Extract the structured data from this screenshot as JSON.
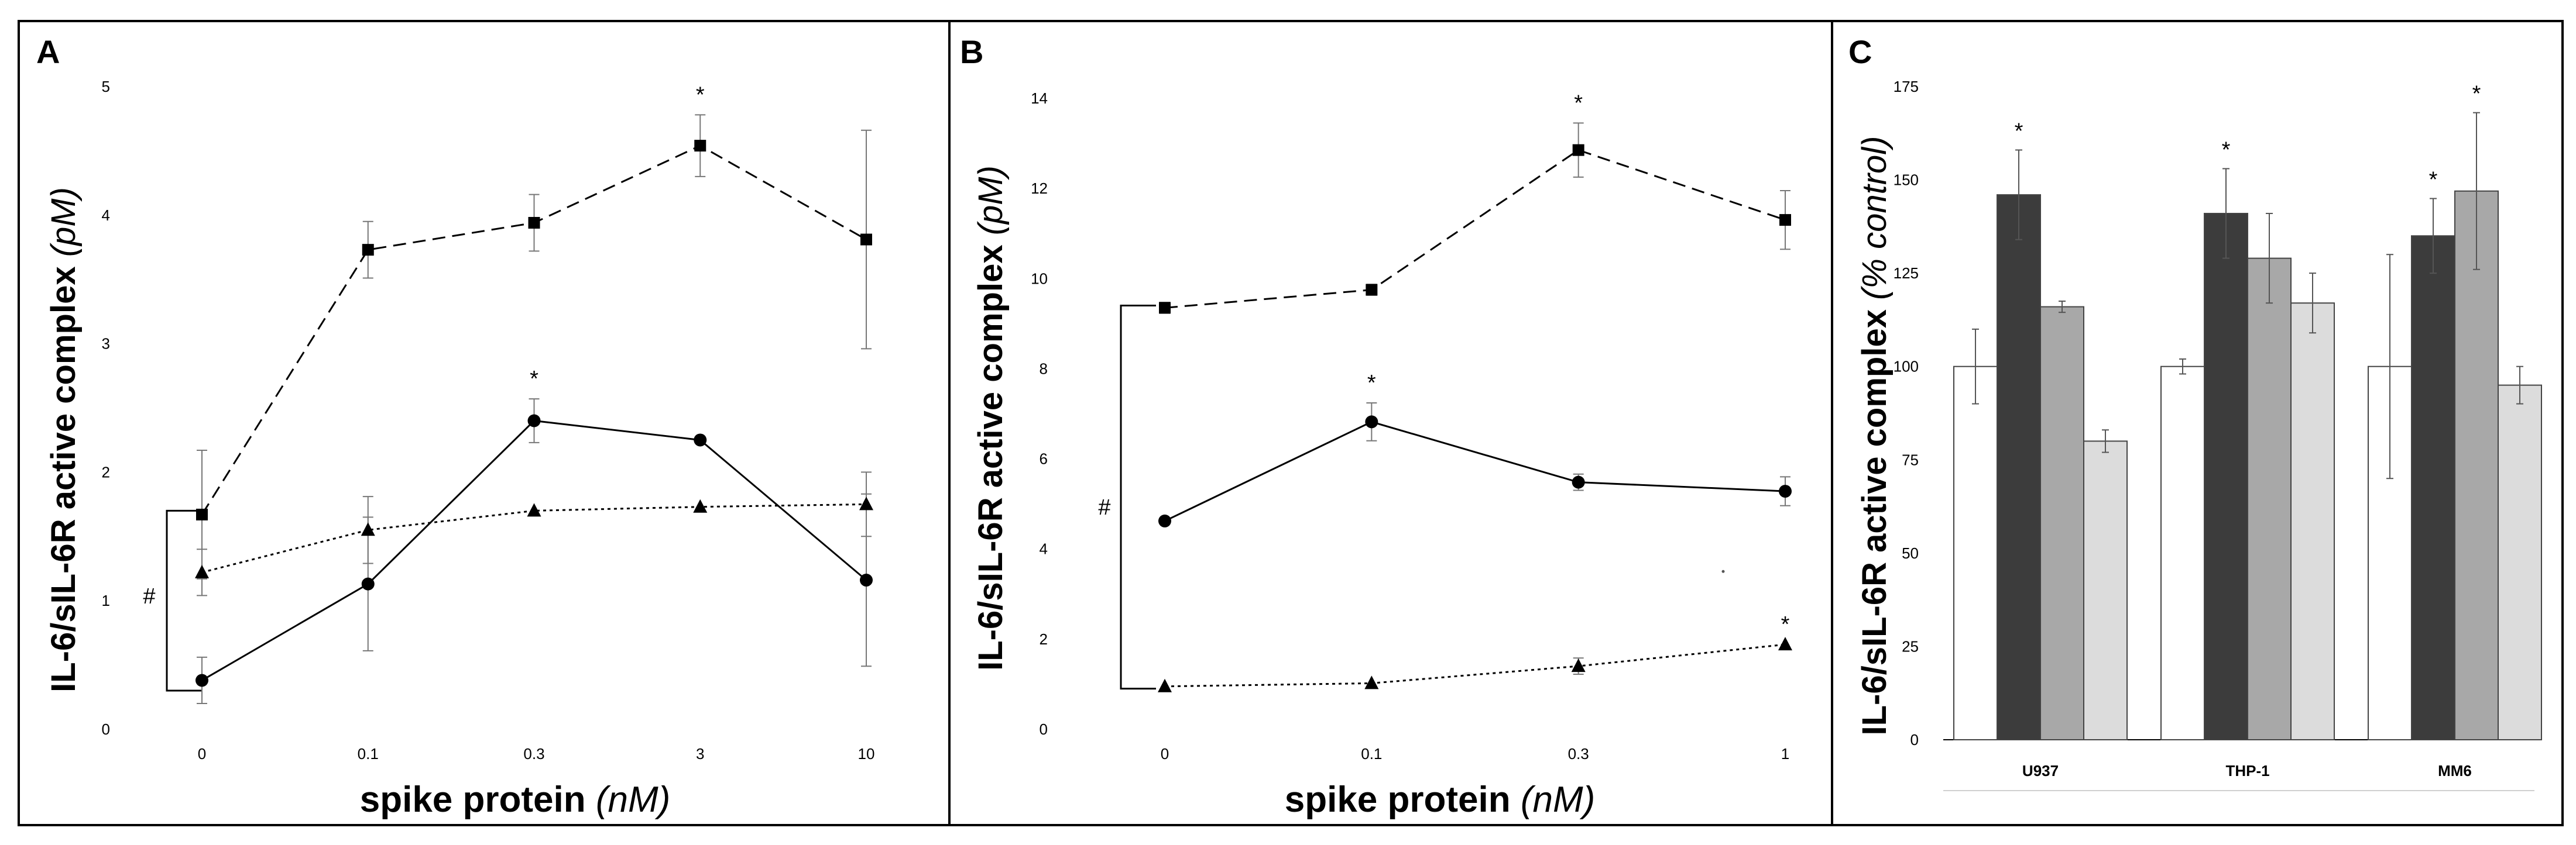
{
  "panels": [
    {
      "letter": "A",
      "ylabel_main": "IL-6/sIL-6R active complex ",
      "ylabel_unit": "(pM)",
      "xlabel_main": "spike protein ",
      "xlabel_unit": "(nM)",
      "bracket_label": "#"
    },
    {
      "letter": "B",
      "ylabel_main": "IL-6/sIL-6R active complex ",
      "ylabel_unit": "(pM)",
      "xlabel_main": "spike protein ",
      "xlabel_unit": "(nM)",
      "bracket_label": "#"
    },
    {
      "letter": "C",
      "ylabel_main": "IL-6/sIL-6R active complex ",
      "ylabel_unit": "(% control)"
    }
  ],
  "chart_data": [
    {
      "type": "line",
      "panel": "A",
      "categories": [
        "0",
        "0.1",
        "0.3",
        "3",
        "10"
      ],
      "ylim": [
        0,
        5
      ],
      "yticks": [
        "0",
        "1",
        "2",
        "3",
        "4",
        "5"
      ],
      "series": [
        {
          "style": "dashed",
          "marker": "square",
          "values": [
            1.67,
            3.73,
            3.94,
            4.54,
            3.81
          ],
          "errors": [
            0.5,
            0.22,
            0.22,
            0.24,
            0.85
          ],
          "stars": [
            false,
            false,
            false,
            true,
            false
          ]
        },
        {
          "style": "solid",
          "marker": "circle",
          "values": [
            0.38,
            1.13,
            2.4,
            2.25,
            1.16
          ],
          "errors": [
            0.18,
            0.52,
            0.17,
            0.0,
            0.67
          ],
          "stars": [
            false,
            false,
            true,
            false,
            false
          ]
        },
        {
          "style": "dotted",
          "marker": "triangle",
          "values": [
            1.22,
            1.55,
            1.7,
            1.73,
            1.75
          ],
          "errors": [
            0.18,
            0.26,
            0.0,
            0.0,
            0.25
          ],
          "stars": [
            false,
            false,
            false,
            false,
            false
          ]
        }
      ],
      "bracket": [
        0.3,
        1.7
      ]
    },
    {
      "type": "line",
      "panel": "B",
      "categories": [
        "0",
        "0.1",
        "0.3",
        "1"
      ],
      "ylim": [
        0,
        14
      ],
      "yticks": [
        "0",
        "2",
        "4",
        "6",
        "8",
        "10",
        "12",
        "14"
      ],
      "series": [
        {
          "style": "dashed",
          "marker": "square",
          "values": [
            9.35,
            9.75,
            12.85,
            11.3
          ],
          "errors": [
            0.12,
            0.12,
            0.6,
            0.65
          ],
          "stars": [
            false,
            false,
            true,
            false
          ]
        },
        {
          "style": "solid",
          "marker": "circle",
          "values": [
            4.62,
            6.82,
            5.48,
            5.28
          ],
          "errors": [
            0.0,
            0.42,
            0.18,
            0.32
          ],
          "stars": [
            false,
            true,
            false,
            false
          ]
        },
        {
          "style": "dotted",
          "marker": "triangle",
          "values": [
            0.95,
            1.02,
            1.4,
            1.88
          ],
          "errors": [
            0.0,
            0.0,
            0.18,
            0.0
          ],
          "stars": [
            false,
            false,
            false,
            true
          ]
        }
      ],
      "bracket": [
        0.9,
        9.4
      ],
      "extra_mark_x": 2.7,
      "extra_mark_y": 3.5
    },
    {
      "type": "bar",
      "panel": "C",
      "categories": [
        "U937",
        "THP-1",
        "MM6"
      ],
      "ylim": [
        0,
        175
      ],
      "yticks": [
        "0",
        "25",
        "50",
        "75",
        "100",
        "125",
        "150",
        "175"
      ],
      "series": [
        {
          "color": "#ffffff",
          "values": [
            100,
            100,
            100
          ],
          "errors": [
            10,
            2,
            30
          ],
          "stars": [
            false,
            false,
            false
          ]
        },
        {
          "color": "#3c3c3c",
          "values": [
            146,
            141,
            135
          ],
          "errors": [
            12,
            12,
            10
          ],
          "stars": [
            true,
            true,
            true
          ]
        },
        {
          "color": "#a8a8a8",
          "values": [
            116,
            129,
            147
          ],
          "errors": [
            1.5,
            12,
            21
          ],
          "stars": [
            false,
            false,
            true
          ]
        },
        {
          "color": "#dcdcdc",
          "values": [
            80,
            117,
            95
          ],
          "errors": [
            3,
            8,
            5
          ],
          "stars": [
            false,
            false,
            false
          ]
        }
      ]
    }
  ]
}
